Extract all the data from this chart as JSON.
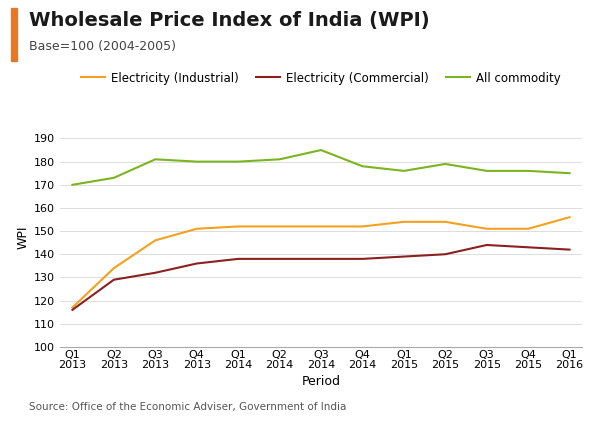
{
  "title": "Wholesale Price Index of India (WPI)",
  "subtitle": "Base=100 (2004-2005)",
  "source": "Source: Office of the Economic Adviser, Government of India",
  "xlabel": "Period",
  "ylabel": "WPI",
  "ylim": [
    100,
    195
  ],
  "yticks": [
    100,
    110,
    120,
    130,
    140,
    150,
    160,
    170,
    180,
    190
  ],
  "x_labels": [
    "Q1\n2013",
    "Q2\n2013",
    "Q3\n2013",
    "Q4\n2013",
    "Q1\n2014",
    "Q2\n2014",
    "Q3\n2014",
    "Q4\n2014",
    "Q1\n2015",
    "Q2\n2015",
    "Q3\n2015",
    "Q4\n2015",
    "Q1\n2016"
  ],
  "electricity_industrial": [
    117,
    134,
    146,
    151,
    152,
    152,
    152,
    152,
    154,
    154,
    151,
    151,
    156
  ],
  "electricity_commercial": [
    116,
    129,
    132,
    136,
    138,
    138,
    138,
    138,
    139,
    140,
    144,
    143,
    142
  ],
  "all_commodity": [
    170,
    173,
    181,
    180,
    180,
    181,
    185,
    178,
    176,
    179,
    176,
    176,
    175
  ],
  "color_industrial": "#F4A020",
  "color_commercial": "#8B2020",
  "color_all": "#7AB520",
  "accent_color": "#E87722",
  "bg_color": "#FFFFFF",
  "title_fontsize": 14,
  "subtitle_fontsize": 9,
  "axis_label_fontsize": 9,
  "tick_fontsize": 8,
  "legend_fontsize": 8.5,
  "source_fontsize": 7.5
}
